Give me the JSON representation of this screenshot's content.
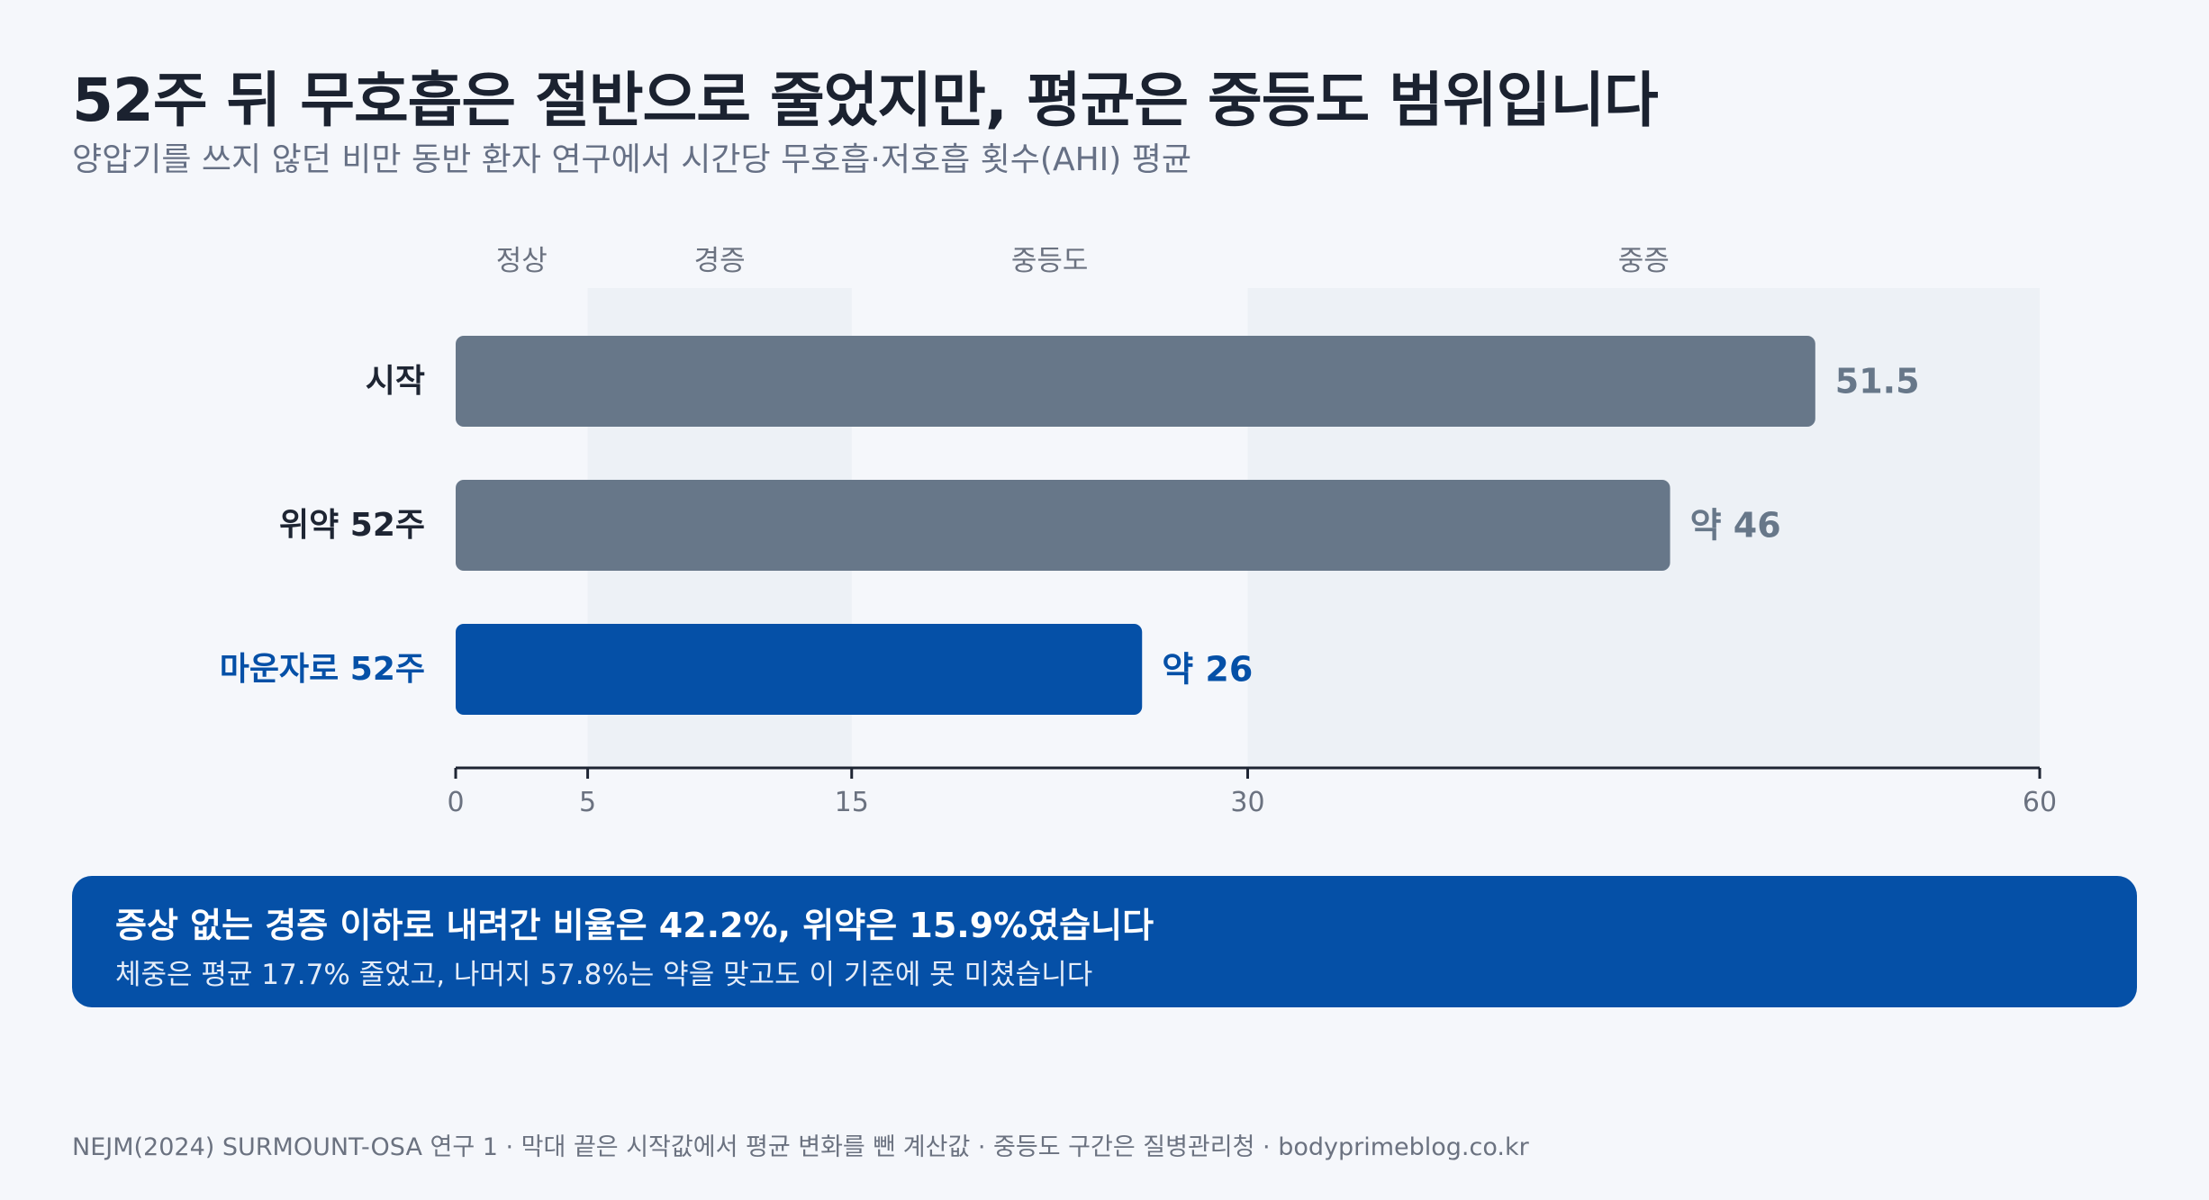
{
  "title": "52주 뒤 무호흡은 절반으로 줄었지만, 평균은 중등도 범위입니다",
  "subtitle": "양압기를 쓰지 않던 비만 동반 환자 연구에서 시간당 무호흡·저호흡 횟수(AHI) 평균",
  "chart_data": {
    "type": "bar",
    "orientation": "horizontal",
    "categories": [
      "시작",
      "위약 52주",
      "마운자로 52주"
    ],
    "values": [
      51.5,
      46,
      26
    ],
    "value_labels": [
      "51.5",
      "약 46",
      "약 26"
    ],
    "bar_colors": [
      "#677789",
      "#677789",
      "#0550a7"
    ],
    "category_label_colors": [
      "#1e2533",
      "#1e2533",
      "#0550a7"
    ],
    "value_label_colors": [
      "#677789",
      "#677789",
      "#0550a7"
    ],
    "xlim": [
      0,
      60
    ],
    "x_ticks": [
      0,
      5,
      15,
      30,
      60
    ],
    "severity_bands": [
      {
        "label": "정상",
        "start": 0,
        "end": 5,
        "shaded": false
      },
      {
        "label": "경증",
        "start": 5,
        "end": 15,
        "shaded": true
      },
      {
        "label": "중등도",
        "start": 15,
        "end": 30,
        "shaded": false
      },
      {
        "label": "중증",
        "start": 30,
        "end": 60,
        "shaded": true
      }
    ],
    "band_color": "#edf1f6",
    "axis_color": "#1e2533",
    "xlabel": "",
    "ylabel": ""
  },
  "callout": {
    "title": "증상 없는 경증 이하로 내려간 비율은 42.2%, 위약은 15.9%였습니다",
    "text": "체중은 평균 17.7% 줄었고, 나머지 57.8%는 약을 맞고도 이 기준에 못 미쳤습니다"
  },
  "footer": "NEJM(2024) SURMOUNT-OSA 연구 1 · 막대 끝은 시작값에서 평균 변화를 뺀 계산값 · 중등도 구간은 질병관리청 · bodyprimeblog.co.kr",
  "colors": {
    "background": "#f5f7fb",
    "accent": "#0550a7",
    "bar_gray": "#677789"
  }
}
